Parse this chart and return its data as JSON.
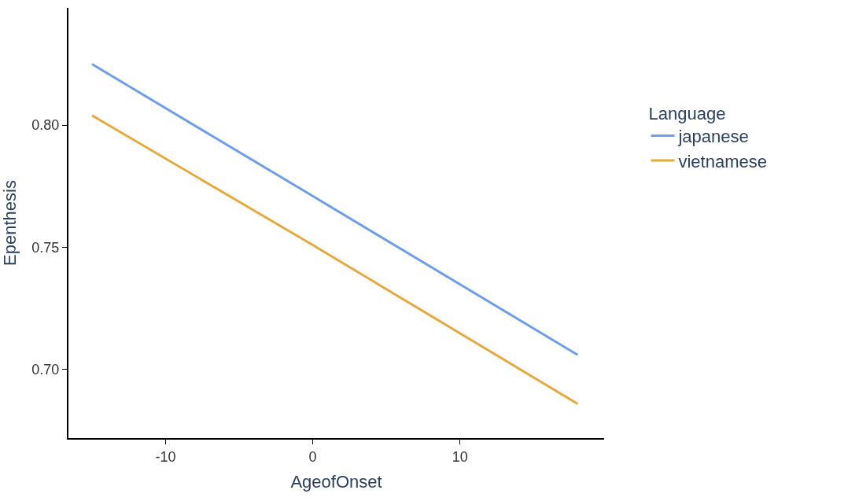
{
  "chart_data": {
    "type": "line",
    "xlabel": "AgeofOnset",
    "ylabel": "Epenthesis",
    "legend_title": "Language",
    "x": [
      -15,
      0,
      18
    ],
    "series": [
      {
        "name": "japanese",
        "color": "#6d9eeb",
        "values": [
          0.825,
          0.771,
          0.706
        ]
      },
      {
        "name": "vietnamese",
        "color": "#e8a93c",
        "values": [
          0.804,
          0.751,
          0.686
        ]
      }
    ],
    "xlim": [
      -16.6,
      19.8
    ],
    "xticks": [
      -10,
      0,
      10
    ],
    "ylim": [
      0.672,
      0.848
    ],
    "yticks": [
      {
        "value": 0.7,
        "label": "0.70"
      },
      0.75,
      {
        "value": 0.8,
        "label": "0.80"
      }
    ],
    "legend": "right",
    "marker": "none",
    "line_style": "solid"
  }
}
